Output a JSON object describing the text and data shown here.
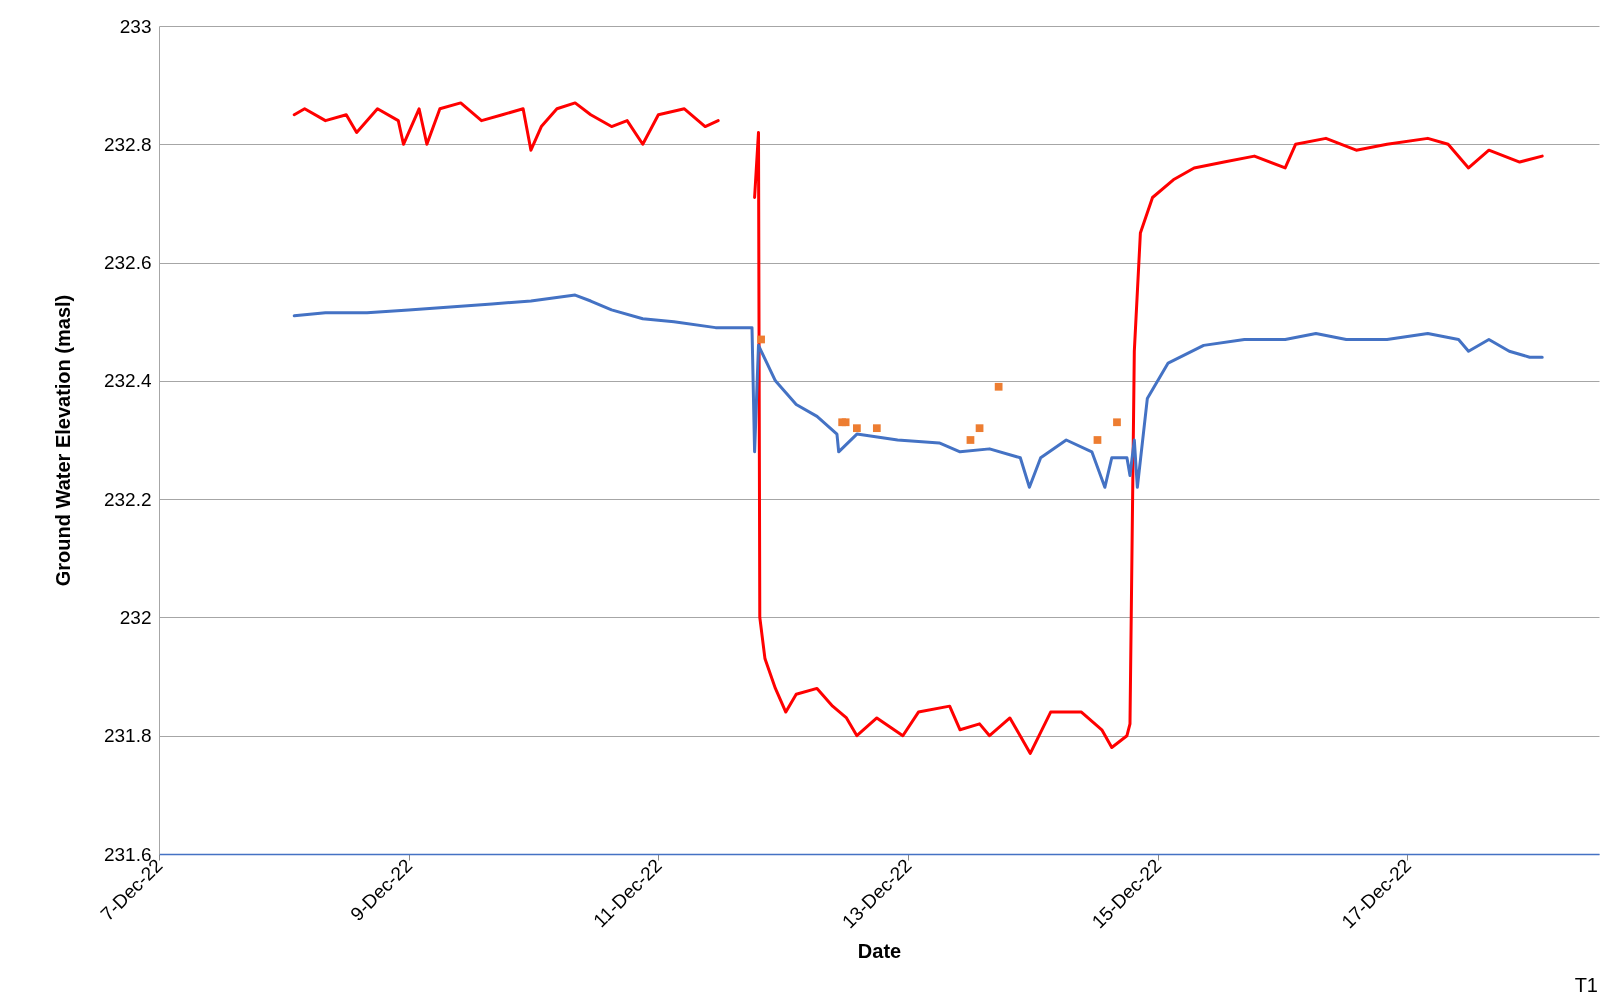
{
  "chart_data": {
    "type": "line",
    "xlabel": "Date",
    "ylabel": "Ground Water Elevation (masl)",
    "xlim": [
      "--12-07",
      "--12-18T12:50"
    ],
    "xticks": [
      {
        "value": "--12-07",
        "label": "7-Dec-22"
      },
      {
        "value": "--12-09",
        "label": "9-Dec-22"
      },
      {
        "value": "--12-11",
        "label": "11-Dec-22"
      },
      {
        "value": "--12-13",
        "label": "13-Dec-22"
      },
      {
        "value": "--12-15",
        "label": "15-Dec-22"
      },
      {
        "value": "--12-17",
        "label": "17-Dec-22"
      }
    ],
    "ylim": [
      231.6,
      233
    ],
    "yticks": [
      231.6,
      231.8,
      232,
      232.2,
      232.4,
      232.6,
      232.8,
      233
    ],
    "grid": "y",
    "line_style": "solid",
    "annotations": [
      "T1"
    ],
    "series": [
      {
        "type": "line",
        "color": "#ff0000",
        "x": [
          "--12-08T02:00",
          "--12-08T04:00",
          "--12-08T08:00",
          "--12-08T12:00",
          "--12-08T14:00",
          "--12-08T18:00",
          "--12-08T22:00",
          "--12-08T23:00",
          "--12-09T02:00",
          "--12-09T03:30",
          "--12-09T06:00",
          "--12-09T10:00",
          "--12-09T14:00",
          "--12-09T18:00",
          "--12-09T22:00",
          "--12-09T23:30",
          "--12-10T01:30",
          "--12-10T04:30",
          "--12-10T08:00",
          "--12-10T11:00",
          "--12-10T15:00",
          "--12-10T18:00",
          "--12-10T21:00",
          "--12-11T00:00",
          "--12-11T05:00",
          "--12-11T09:00",
          "--12-11T11:30",
          "--12-11T15:00",
          "--12-11T18:30",
          "--12-11T19:15",
          "--12-11T19:30",
          "--12-11T20:30",
          "--12-11T22:30",
          "--12-12T00:30",
          "--12-12T02:30",
          "--12-12T06:30",
          "--12-12T09:30",
          "--12-12T12:10",
          "--12-12T14:10",
          "--12-12T18:00",
          "--12-12T23:00",
          "--12-13T02:00",
          "--12-13T08:00",
          "--12-13T10:00",
          "--12-13T13:45",
          "--12-13T15:40",
          "--12-13T19:35",
          "--12-13T23:30",
          "--12-14T03:25",
          "--12-14T09:20",
          "--12-14T13:15",
          "--12-14T15:10",
          "--12-14T18:05",
          "--12-14T18:40",
          "--12-14T19:30",
          "--12-14T20:40",
          "--12-14T23:00",
          "--12-15T03:00",
          "--12-15T07:00",
          "--12-15T12:45",
          "--12-15T18:35",
          "--12-16T00:30",
          "--12-16T02:30",
          "--12-16T08:20",
          "--12-16T14:10",
          "--12-16T20:05",
          "--12-17T03:55",
          "--12-17T07:50",
          "--12-17T11:45",
          "--12-17T15:40",
          "--12-17T21:35",
          "--12-18T01:55"
        ],
        "values": [
          232.85,
          232.86,
          232.84,
          232.85,
          232.82,
          232.86,
          232.84,
          232.8,
          232.86,
          232.8,
          232.86,
          232.87,
          232.84,
          232.85,
          232.86,
          232.79,
          232.83,
          232.86,
          232.87,
          232.85,
          232.83,
          232.84,
          232.8,
          232.85,
          232.86,
          232.83,
          232.84,
          null,
          232.71,
          232.82,
          232.0,
          231.93,
          231.88,
          231.84,
          231.87,
          231.88,
          231.85,
          231.83,
          231.8,
          231.83,
          231.8,
          231.84,
          231.85,
          231.81,
          231.82,
          231.8,
          231.83,
          231.77,
          231.84,
          231.84,
          231.81,
          231.78,
          231.8,
          231.82,
          232.45,
          232.65,
          232.71,
          232.74,
          232.76,
          232.77,
          232.78,
          232.76,
          232.8,
          232.81,
          232.79,
          232.8,
          232.81,
          232.8,
          232.76,
          232.79,
          232.77,
          232.78
        ]
      },
      {
        "type": "line",
        "color": "#4472c4",
        "x": [
          "--12-08T02:00",
          "--12-08T08:00",
          "--12-08T16:00",
          "--12-09T00:00",
          "--12-09T08:00",
          "--12-09T16:00",
          "--12-09T23:30",
          "--12-10T08:00",
          "--12-10T11:00",
          "--12-10T15:00",
          "--12-10T21:00",
          "--12-11T03:00",
          "--12-11T11:00",
          "--12-11T18:00",
          "--12-11T18:30",
          "--12-11T19:15",
          "--12-11T22:30",
          "--12-12T02:30",
          "--12-12T06:30",
          "--12-12T10:20",
          "--12-12T10:40",
          "--12-12T14:10",
          "--12-12T22:00",
          "--12-13T06:00",
          "--12-13T10:00",
          "--12-13T15:40",
          "--12-13T21:35",
          "--12-13T23:20",
          "--12-14T01:30",
          "--12-14T06:25",
          "--12-14T11:20",
          "--12-14T13:50",
          "--12-14T15:10",
          "--12-14T18:05",
          "--12-14T18:40",
          "--12-14T19:30",
          "--12-14T20:05",
          "--12-14T22:00",
          "--12-15T02:00",
          "--12-15T08:50",
          "--12-15T16:40",
          "--12-16T00:30",
          "--12-16T06:25",
          "--12-16T12:15",
          "--12-16T20:05",
          "--12-17T03:55",
          "--12-17T09:50",
          "--12-17T11:45",
          "--12-17T15:40",
          "--12-17T19:35",
          "--12-17T23:30",
          "--12-18T01:55"
        ],
        "values": [
          232.51,
          232.515,
          232.515,
          232.52,
          232.525,
          232.53,
          232.535,
          232.545,
          232.535,
          232.52,
          232.505,
          232.5,
          232.49,
          232.49,
          232.28,
          232.46,
          232.4,
          232.36,
          232.34,
          232.31,
          232.28,
          232.31,
          232.3,
          232.295,
          232.28,
          232.285,
          232.27,
          232.22,
          232.27,
          232.3,
          232.28,
          232.22,
          232.27,
          232.27,
          232.24,
          232.3,
          232.22,
          232.37,
          232.43,
          232.46,
          232.47,
          232.47,
          232.48,
          232.47,
          232.47,
          232.48,
          232.47,
          232.45,
          232.47,
          232.45,
          232.44,
          232.44
        ]
      },
      {
        "type": "scatter",
        "marker": "square",
        "color": "#ed7d31",
        "x": [
          "--12-11T19:45",
          "--12-12T11:20",
          "--12-12T12:00",
          "--12-12T14:10",
          "--12-12T18:00",
          "--12-13T12:00",
          "--12-13T13:45",
          "--12-13T17:25",
          "--12-14T12:25",
          "--12-14T16:10"
        ],
        "values": [
          232.47,
          232.33,
          232.33,
          232.32,
          232.32,
          232.3,
          232.32,
          232.39,
          232.3,
          232.33
        ]
      }
    ]
  }
}
